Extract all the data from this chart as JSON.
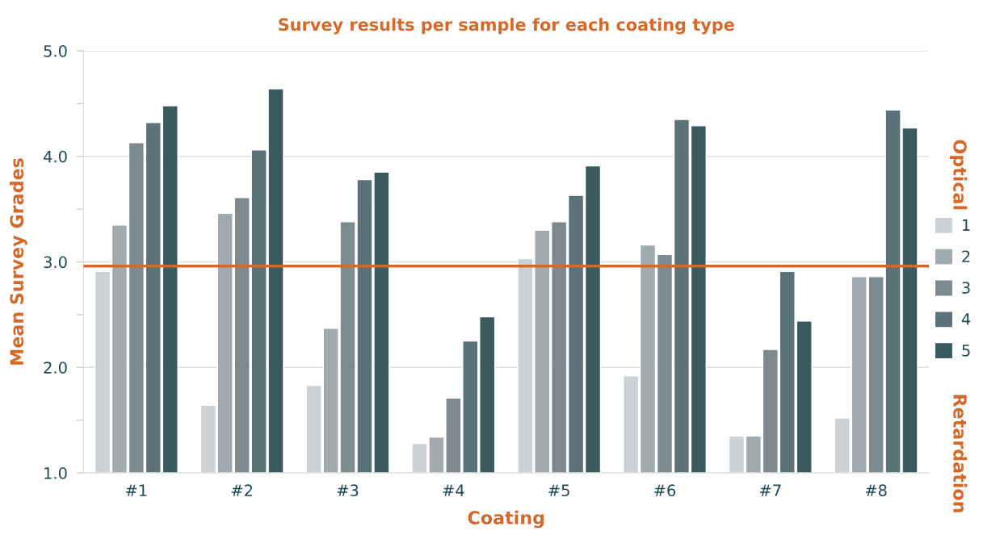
{
  "chart_data": {
    "type": "bar",
    "title": "Survey results per sample for each coating type",
    "xlabel": "Coating",
    "ylabel": "Mean Survey Grades",
    "categories": [
      "#1",
      "#2",
      "#3",
      "#4",
      "#5",
      "#6",
      "#7",
      "#8"
    ],
    "series": [
      {
        "name": "1",
        "color": "#cbd1d4",
        "values": [
          2.91,
          1.64,
          1.83,
          1.28,
          3.03,
          1.92,
          1.35,
          1.52
        ]
      },
      {
        "name": "2",
        "color": "#a1abaf",
        "values": [
          3.35,
          3.46,
          2.37,
          1.34,
          3.3,
          3.16,
          1.35,
          2.86
        ]
      },
      {
        "name": "3",
        "color": "#7d8b91",
        "values": [
          4.13,
          3.61,
          3.38,
          1.71,
          3.38,
          3.07,
          2.17,
          2.86
        ]
      },
      {
        "name": "4",
        "color": "#5c7279",
        "values": [
          4.32,
          4.06,
          3.78,
          2.25,
          3.63,
          4.35,
          2.91,
          4.44
        ]
      },
      {
        "name": "5",
        "color": "#3b5a60",
        "values": [
          4.48,
          4.64,
          3.85,
          2.48,
          3.91,
          4.29,
          2.44,
          4.27
        ]
      }
    ],
    "ylim": [
      1,
      5
    ],
    "yticks": [
      {
        "value": 1,
        "label": "1.0"
      },
      {
        "value": 1.5,
        "label": null
      },
      {
        "value": 2,
        "label": "2.0"
      },
      {
        "value": 2.5,
        "label": null
      },
      {
        "value": 3,
        "label": "3.0"
      },
      {
        "value": 3.5,
        "label": null
      },
      {
        "value": 4,
        "label": "4.0"
      },
      {
        "value": 4.5,
        "label": null
      },
      {
        "value": 5,
        "label": "5.0"
      }
    ],
    "ref_lines": [
      {
        "axis": "y",
        "value": 2.96,
        "color": "#d4692a"
      }
    ],
    "annotations": [
      "Optical",
      "Retardation"
    ],
    "grid": "y",
    "legend": "right"
  }
}
